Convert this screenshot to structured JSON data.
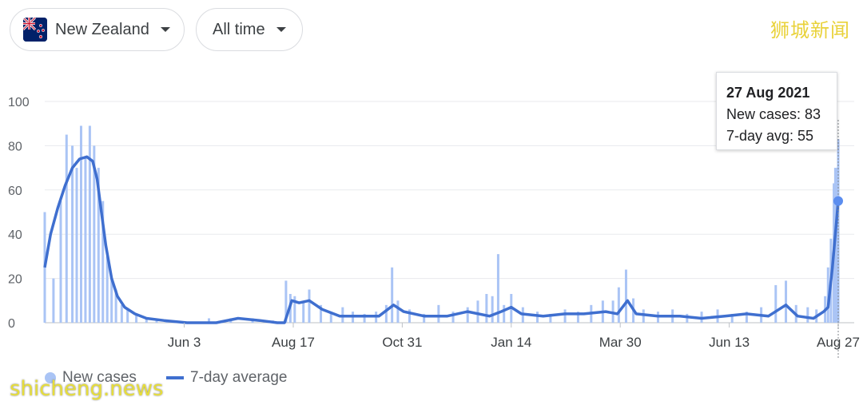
{
  "filters": {
    "country": "New Zealand",
    "range": "All time"
  },
  "icons": {
    "country_flag": "nz-flag-icon",
    "dropdown": "caret-down-icon",
    "legend_bars": "dot-icon",
    "legend_line": "line-icon"
  },
  "branding": {
    "top_right": "狮城新闻",
    "watermark": "shicheng.news"
  },
  "tooltip": {
    "date": "27 Aug 2021",
    "new_cases_label": "New cases: 83",
    "avg_label": "7-day avg: 55"
  },
  "legend": {
    "bars": "New cases",
    "line": "7-day average"
  },
  "colors": {
    "bars": "#aac4f5",
    "line": "#3f6fcf",
    "grid": "#e8eaed",
    "brand": "#e9d23a"
  },
  "chart_data": {
    "type": "bar",
    "title": "",
    "xlabel": "",
    "ylabel": "",
    "ylim": [
      0,
      100
    ],
    "yticks": [
      0,
      20,
      40,
      60,
      80,
      100
    ],
    "x_range": [
      "2020-02-28",
      "2021-08-27"
    ],
    "xticks": [
      {
        "label": "Jun 3",
        "date": "2020-06-03"
      },
      {
        "label": "Aug 17",
        "date": "2020-08-17"
      },
      {
        "label": "Oct 31",
        "date": "2020-10-31"
      },
      {
        "label": "Jan 14",
        "date": "2021-01-14"
      },
      {
        "label": "Mar 30",
        "date": "2021-03-30"
      },
      {
        "label": "Jun 13",
        "date": "2021-06-13"
      },
      {
        "label": "Aug 27",
        "date": "2021-08-27"
      }
    ],
    "grid": true,
    "series": [
      {
        "name": "New cases",
        "type": "bar",
        "points": [
          [
            "2020-02-28",
            50
          ],
          [
            "2020-03-05",
            20
          ],
          [
            "2020-03-10",
            55
          ],
          [
            "2020-03-14",
            85
          ],
          [
            "2020-03-18",
            80
          ],
          [
            "2020-03-21",
            70
          ],
          [
            "2020-03-24",
            89
          ],
          [
            "2020-03-27",
            75
          ],
          [
            "2020-03-30",
            89
          ],
          [
            "2020-04-02",
            80
          ],
          [
            "2020-04-05",
            70
          ],
          [
            "2020-04-08",
            55
          ],
          [
            "2020-04-11",
            30
          ],
          [
            "2020-04-14",
            20
          ],
          [
            "2020-04-17",
            15
          ],
          [
            "2020-04-21",
            8
          ],
          [
            "2020-04-25",
            6
          ],
          [
            "2020-05-01",
            4
          ],
          [
            "2020-05-08",
            2
          ],
          [
            "2020-05-15",
            1
          ],
          [
            "2020-05-22",
            1
          ],
          [
            "2020-06-20",
            2
          ],
          [
            "2020-07-05",
            2
          ],
          [
            "2020-07-20",
            2
          ],
          [
            "2020-08-03",
            1
          ],
          [
            "2020-08-12",
            19
          ],
          [
            "2020-08-15",
            13
          ],
          [
            "2020-08-18",
            12
          ],
          [
            "2020-08-24",
            9
          ],
          [
            "2020-08-28",
            15
          ],
          [
            "2020-09-05",
            8
          ],
          [
            "2020-09-12",
            5
          ],
          [
            "2020-09-20",
            7
          ],
          [
            "2020-09-27",
            5
          ],
          [
            "2020-10-05",
            4
          ],
          [
            "2020-10-13",
            5
          ],
          [
            "2020-10-20",
            8
          ],
          [
            "2020-10-24",
            25
          ],
          [
            "2020-10-28",
            10
          ],
          [
            "2020-11-05",
            6
          ],
          [
            "2020-11-15",
            4
          ],
          [
            "2020-11-25",
            8
          ],
          [
            "2020-12-05",
            5
          ],
          [
            "2020-12-15",
            7
          ],
          [
            "2020-12-22",
            10
          ],
          [
            "2020-12-28",
            13
          ],
          [
            "2021-01-01",
            12
          ],
          [
            "2021-01-05",
            31
          ],
          [
            "2021-01-09",
            8
          ],
          [
            "2021-01-14",
            13
          ],
          [
            "2021-01-22",
            7
          ],
          [
            "2021-02-01",
            5
          ],
          [
            "2021-02-10",
            4
          ],
          [
            "2021-02-20",
            6
          ],
          [
            "2021-03-01",
            5
          ],
          [
            "2021-03-10",
            8
          ],
          [
            "2021-03-18",
            10
          ],
          [
            "2021-03-25",
            10
          ],
          [
            "2021-03-29",
            16
          ],
          [
            "2021-04-03",
            24
          ],
          [
            "2021-04-08",
            11
          ],
          [
            "2021-04-15",
            6
          ],
          [
            "2021-04-25",
            5
          ],
          [
            "2021-05-05",
            6
          ],
          [
            "2021-05-15",
            4
          ],
          [
            "2021-05-25",
            5
          ],
          [
            "2021-06-05",
            6
          ],
          [
            "2021-06-15",
            4
          ],
          [
            "2021-06-25",
            5
          ],
          [
            "2021-07-05",
            7
          ],
          [
            "2021-07-15",
            17
          ],
          [
            "2021-07-22",
            19
          ],
          [
            "2021-07-29",
            8
          ],
          [
            "2021-08-06",
            7
          ],
          [
            "2021-08-12",
            6
          ],
          [
            "2021-08-18",
            12
          ],
          [
            "2021-08-20",
            25
          ],
          [
            "2021-08-22",
            38
          ],
          [
            "2021-08-24",
            63
          ],
          [
            "2021-08-25",
            70
          ],
          [
            "2021-08-26",
            70
          ],
          [
            "2021-08-27",
            83
          ]
        ]
      },
      {
        "name": "7-day average",
        "type": "line",
        "points": [
          [
            "2020-02-28",
            25
          ],
          [
            "2020-03-03",
            40
          ],
          [
            "2020-03-08",
            52
          ],
          [
            "2020-03-13",
            62
          ],
          [
            "2020-03-18",
            70
          ],
          [
            "2020-03-23",
            74
          ],
          [
            "2020-03-28",
            75
          ],
          [
            "2020-04-01",
            73
          ],
          [
            "2020-04-04",
            65
          ],
          [
            "2020-04-07",
            50
          ],
          [
            "2020-04-10",
            35
          ],
          [
            "2020-04-14",
            20
          ],
          [
            "2020-04-18",
            12
          ],
          [
            "2020-04-23",
            7
          ],
          [
            "2020-04-30",
            4
          ],
          [
            "2020-05-08",
            2
          ],
          [
            "2020-05-20",
            1
          ],
          [
            "2020-06-05",
            0
          ],
          [
            "2020-06-25",
            0
          ],
          [
            "2020-07-10",
            2
          ],
          [
            "2020-07-25",
            1
          ],
          [
            "2020-08-06",
            0
          ],
          [
            "2020-08-11",
            0
          ],
          [
            "2020-08-16",
            10
          ],
          [
            "2020-08-21",
            9
          ],
          [
            "2020-08-28",
            10
          ],
          [
            "2020-09-06",
            6
          ],
          [
            "2020-09-18",
            3
          ],
          [
            "2020-10-05",
            3
          ],
          [
            "2020-10-15",
            3
          ],
          [
            "2020-10-25",
            8
          ],
          [
            "2020-11-01",
            5
          ],
          [
            "2020-11-15",
            3
          ],
          [
            "2020-12-01",
            3
          ],
          [
            "2020-12-15",
            5
          ],
          [
            "2020-12-30",
            3
          ],
          [
            "2021-01-07",
            5
          ],
          [
            "2021-01-14",
            7
          ],
          [
            "2021-01-21",
            4
          ],
          [
            "2021-02-05",
            3
          ],
          [
            "2021-02-20",
            4
          ],
          [
            "2021-03-05",
            4
          ],
          [
            "2021-03-20",
            5
          ],
          [
            "2021-03-28",
            4
          ],
          [
            "2021-04-04",
            10
          ],
          [
            "2021-04-10",
            4
          ],
          [
            "2021-04-25",
            3
          ],
          [
            "2021-05-10",
            3
          ],
          [
            "2021-05-25",
            2
          ],
          [
            "2021-06-10",
            3
          ],
          [
            "2021-06-25",
            4
          ],
          [
            "2021-07-10",
            3
          ],
          [
            "2021-07-22",
            8
          ],
          [
            "2021-07-30",
            3
          ],
          [
            "2021-08-10",
            2
          ],
          [
            "2021-08-17",
            5
          ],
          [
            "2021-08-20",
            7
          ],
          [
            "2021-08-23",
            25
          ],
          [
            "2021-08-25",
            40
          ],
          [
            "2021-08-27",
            55
          ]
        ]
      }
    ],
    "tooltip_point": {
      "date": "2021-08-27",
      "value": 55
    }
  }
}
